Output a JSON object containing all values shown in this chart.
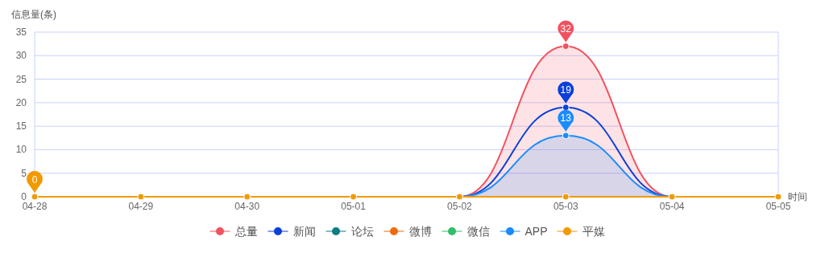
{
  "chart_data": {
    "type": "line",
    "ylabel": "信息量(条)",
    "xlabel": "时间",
    "categories": [
      "04-28",
      "04-29",
      "04-30",
      "05-01",
      "05-02",
      "05-03",
      "05-04",
      "05-05"
    ],
    "series": [
      {
        "name": "总量",
        "type": "area",
        "color": "#f2515f",
        "values": [
          null,
          null,
          null,
          null,
          0,
          32,
          0,
          null
        ]
      },
      {
        "name": "新闻",
        "type": "line",
        "color": "#0a3fd9",
        "values": [
          null,
          null,
          null,
          null,
          0,
          19,
          0,
          null
        ]
      },
      {
        "name": "论坛",
        "type": "line",
        "color": "#0a7d85",
        "values": [
          null,
          null,
          null,
          null,
          null,
          null,
          null,
          null
        ]
      },
      {
        "name": "微博",
        "type": "line",
        "color": "#f06a10",
        "values": [
          null,
          null,
          null,
          null,
          null,
          null,
          null,
          null
        ]
      },
      {
        "name": "微信",
        "type": "line",
        "color": "#2fbf6a",
        "values": [
          null,
          null,
          null,
          null,
          null,
          null,
          null,
          null
        ]
      },
      {
        "name": "APP",
        "type": "area",
        "color": "#1a8cff",
        "values": [
          null,
          null,
          null,
          null,
          0,
          13,
          0,
          null
        ]
      },
      {
        "name": "平媒",
        "type": "line",
        "color": "#f09a00",
        "values": [
          0,
          0,
          0,
          0,
          0,
          0,
          0,
          0
        ]
      }
    ],
    "ylim": [
      0,
      35
    ],
    "yticks": [
      0,
      5,
      10,
      15,
      20,
      25,
      30,
      35
    ],
    "grid": "y",
    "legend": "bottom",
    "marker": "circle",
    "line_style": "solid",
    "annotations": [
      {
        "text": "32",
        "x": "05-03",
        "y": 32
      },
      {
        "text": "19",
        "x": "05-03",
        "y": 19
      },
      {
        "text": "13",
        "x": "05-03",
        "y": 13
      },
      {
        "text": "0",
        "x": "04-28",
        "y": 0
      }
    ]
  }
}
